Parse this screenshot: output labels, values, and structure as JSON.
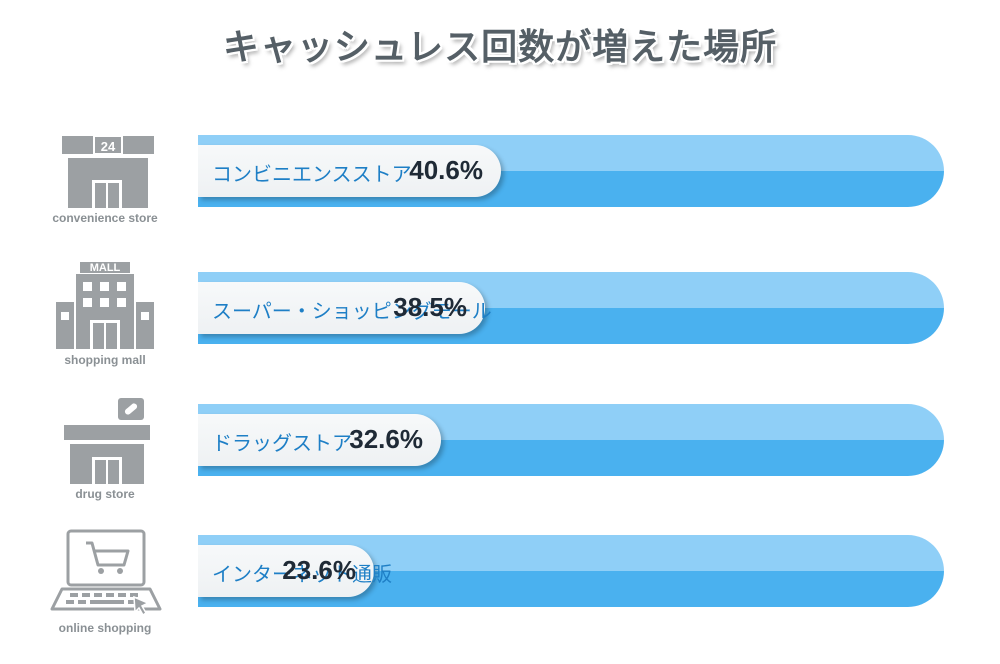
{
  "title": "キャッシュレス回数が増えた場所",
  "chart_data": {
    "type": "bar",
    "orientation": "horizontal",
    "title": "キャッシュレス回数が増えた場所",
    "categories": [
      "コンビニエンスストア",
      "スーパー・ショッピングモール",
      "ドラッグストア",
      "インターネット通販"
    ],
    "values": [
      40.6,
      38.5,
      32.6,
      23.6
    ],
    "value_labels": [
      "40.6%",
      "38.5%",
      "32.6%",
      "23.6%"
    ],
    "icon_labels": [
      "convenience store",
      "shopping mall",
      "drug store",
      "online shopping"
    ],
    "icons": [
      "convenience-store-icon",
      "shopping-mall-icon",
      "drug-store-icon",
      "online-shopping-icon"
    ],
    "xlim": [
      0,
      100
    ],
    "colors": {
      "track_light": "#8fcff7",
      "track_dark": "#4ab1ef",
      "fill": "#f2f4f6",
      "category_text": "#1e7fc6",
      "value_text": "#1f2a36",
      "icon": "#9ca0a3"
    }
  }
}
